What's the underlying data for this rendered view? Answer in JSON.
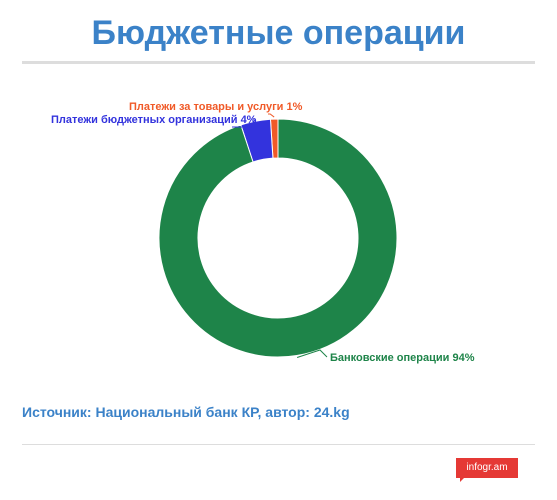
{
  "header": {
    "title": "Бюджетные операции"
  },
  "chart_data": {
    "type": "pie",
    "donut": true,
    "categories": [
      "Банковские операции",
      "Платежи бюджетных организаций",
      "Платежи за товары и услуги"
    ],
    "values": [
      94,
      4,
      1
    ],
    "labels": [
      "Банковские операции 94%",
      "Платежи бюджетных организаций 4%",
      "Платежи за товары и услуги 1%"
    ],
    "colors": [
      "#1e8449",
      "#3333dd",
      "#f05a28"
    ],
    "legend": "none"
  },
  "footer": {
    "source": "Источник: Национальный банк КР, автор: 24.kg",
    "logo": "infogr.am"
  }
}
